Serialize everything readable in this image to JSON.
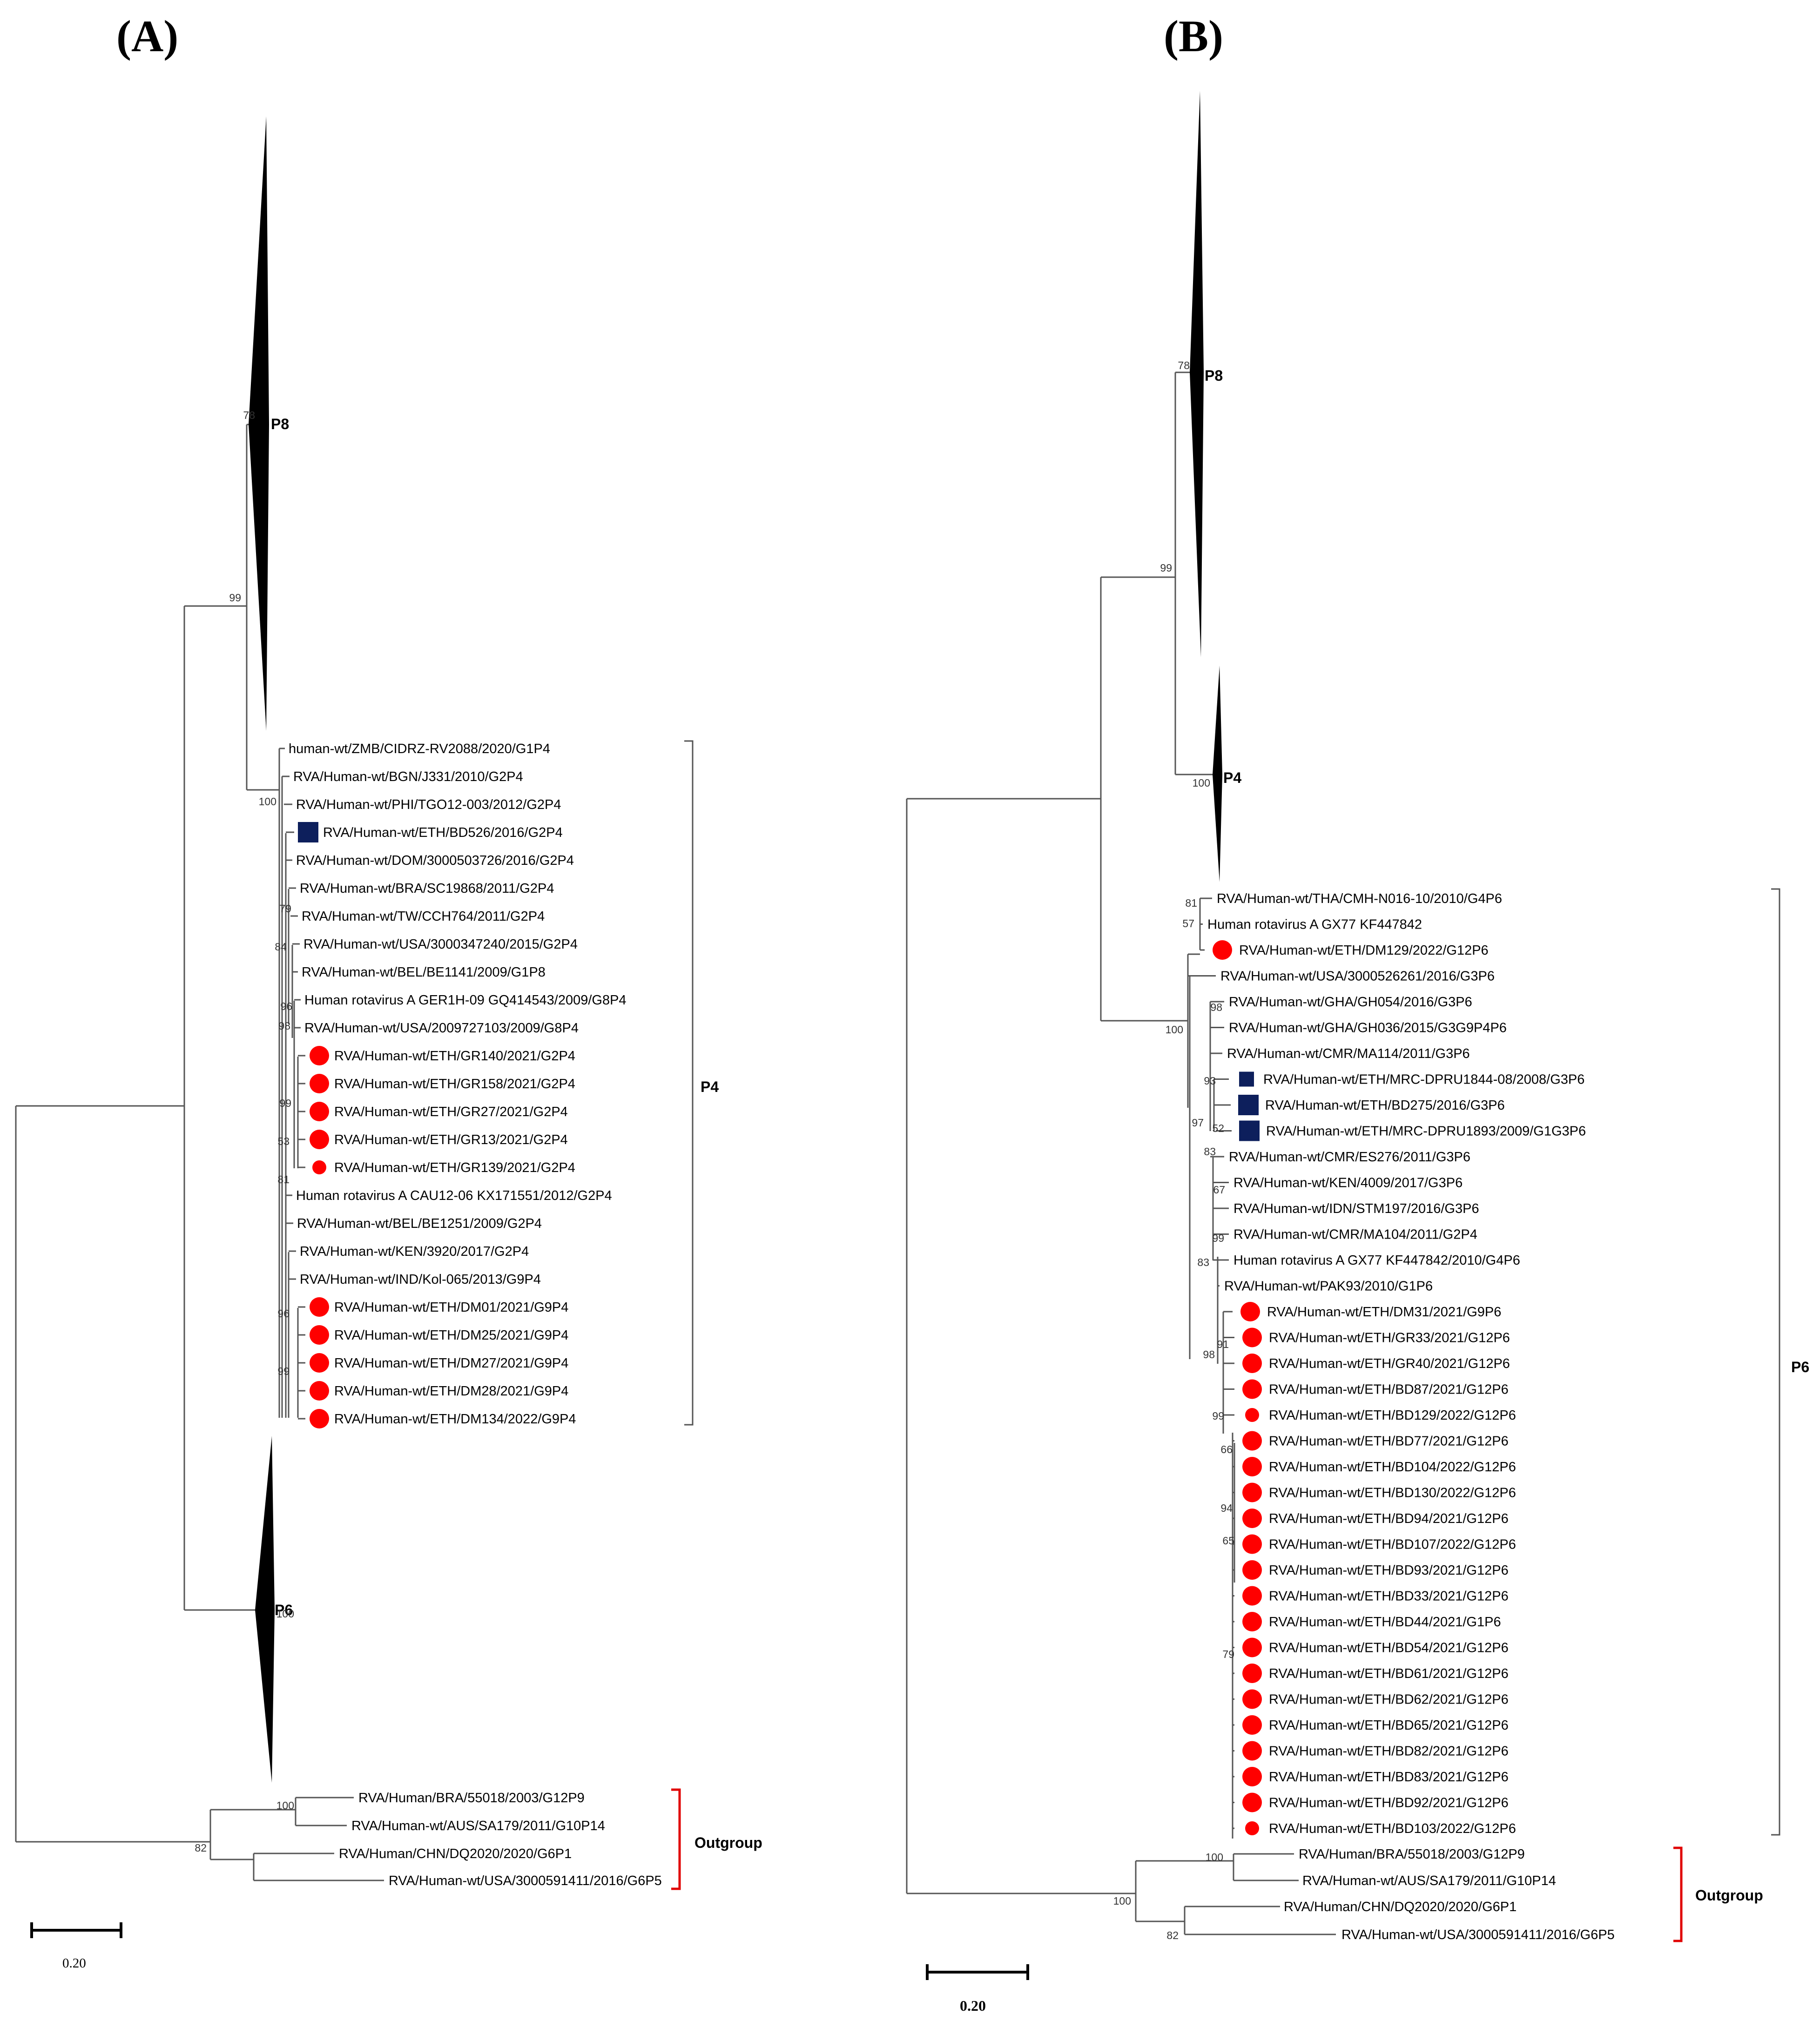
{
  "panelA": {
    "label": "(A)",
    "clades": {
      "p8": "P8",
      "p4": "P4",
      "p6": "P6",
      "outgroup": "Outgroup"
    },
    "scale": "0.20",
    "bootstrap": [
      "78",
      "99",
      "100",
      "79",
      "84",
      "96",
      "98",
      "99",
      "53",
      "81",
      "96",
      "99",
      "100",
      "100",
      "82"
    ],
    "p4_taxa": [
      {
        "label": "human-wt/ZMB/CIDRZ-RV2088/2020/G1P4",
        "marker": "none"
      },
      {
        "label": "RVA/Human-wt/BGN/J331/2010/G2P4",
        "marker": "none"
      },
      {
        "label": "RVA/Human-wt/PHI/TGO12-003/2012/G2P4",
        "marker": "none"
      },
      {
        "label": "RVA/Human-wt/ETH/BD526/2016/G2P4",
        "marker": "square"
      },
      {
        "label": "RVA/Human-wt/DOM/3000503726/2016/G2P4",
        "marker": "none"
      },
      {
        "label": "RVA/Human-wt/BRA/SC19868/2011/G2P4",
        "marker": "none"
      },
      {
        "label": "RVA/Human-wt/TW/CCH764/2011/G2P4",
        "marker": "none"
      },
      {
        "label": "RVA/Human-wt/USA/3000347240/2015/G2P4",
        "marker": "none"
      },
      {
        "label": "RVA/Human-wt/BEL/BE1141/2009/G1P8",
        "marker": "none"
      },
      {
        "label": "Human rotavirus A GER1H-09 GQ414543/2009/G8P4",
        "marker": "none"
      },
      {
        "label": "RVA/Human-wt/USA/2009727103/2009/G8P4",
        "marker": "none"
      },
      {
        "label": "RVA/Human-wt/ETH/GR140/2021/G2P4",
        "marker": "circle"
      },
      {
        "label": "RVA/Human-wt/ETH/GR158/2021/G2P4",
        "marker": "circle"
      },
      {
        "label": "RVA/Human-wt/ETH/GR27/2021/G2P4",
        "marker": "circle"
      },
      {
        "label": "RVA/Human-wt/ETH/GR13/2021/G2P4",
        "marker": "circle"
      },
      {
        "label": "RVA/Human-wt/ETH/GR139/2021/G2P4",
        "marker": "circle-small"
      },
      {
        "label": "Human rotavirus A CAU12-06 KX171551/2012/G2P4",
        "marker": "none"
      },
      {
        "label": "RVA/Human-wt/BEL/BE1251/2009/G2P4",
        "marker": "none"
      },
      {
        "label": "RVA/Human-wt/KEN/3920/2017/G2P4",
        "marker": "none"
      },
      {
        "label": "RVA/Human-wt/IND/Kol-065/2013/G9P4",
        "marker": "none"
      },
      {
        "label": "RVA/Human-wt/ETH/DM01/2021/G9P4",
        "marker": "circle"
      },
      {
        "label": "RVA/Human-wt/ETH/DM25/2021/G9P4",
        "marker": "circle"
      },
      {
        "label": "RVA/Human-wt/ETH/DM27/2021/G9P4",
        "marker": "circle"
      },
      {
        "label": "RVA/Human-wt/ETH/DM28/2021/G9P4",
        "marker": "circle"
      },
      {
        "label": "RVA/Human-wt/ETH/DM134/2022/G9P4",
        "marker": "circle"
      }
    ],
    "outgroup_taxa": [
      {
        "label": "RVA/Human/BRA/55018/2003/G12P9"
      },
      {
        "label": "RVA/Human-wt/AUS/SA179/2011/G10P14"
      },
      {
        "label": "RVA/Human/CHN/DQ2020/2020/G6P1"
      },
      {
        "label": "RVA/Human-wt/USA/3000591411/2016/G6P5"
      }
    ]
  },
  "panelB": {
    "label": "(B)",
    "clades": {
      "p8": "P8",
      "p4": "P4",
      "p6": "P6",
      "outgroup": "Outgroup"
    },
    "scale": "0.20",
    "bootstrap": [
      "78",
      "99",
      "100",
      "81",
      "57",
      "100",
      "98",
      "93",
      "97",
      "52",
      "83",
      "67",
      "99",
      "83",
      "91",
      "98",
      "99",
      "66",
      "94",
      "65",
      "79",
      "100",
      "100",
      "82"
    ],
    "p6_taxa": [
      {
        "label": "RVA/Human-wt/THA/CMH-N016-10/2010/G4P6",
        "marker": "none"
      },
      {
        "label": "Human rotavirus A GX77 KF447842",
        "marker": "none"
      },
      {
        "label": "RVA/Human-wt/ETH/DM129/2022/G12P6",
        "marker": "circle"
      },
      {
        "label": "RVA/Human-wt/USA/3000526261/2016/G3P6",
        "marker": "none"
      },
      {
        "label": "RVA/Human-wt/GHA/GH054/2016/G3P6",
        "marker": "none"
      },
      {
        "label": "RVA/Human-wt/GHA/GH036/2015/G3G9P4P6",
        "marker": "none"
      },
      {
        "label": "RVA/Human-wt/CMR/MA114/2011/G3P6",
        "marker": "none"
      },
      {
        "label": "RVA/Human-wt/ETH/MRC-DPRU1844-08/2008/G3P6",
        "marker": "square-small"
      },
      {
        "label": "RVA/Human-wt/ETH/BD275/2016/G3P6",
        "marker": "square"
      },
      {
        "label": "RVA/Human-wt/ETH/MRC-DPRU1893/2009/G1G3P6",
        "marker": "square"
      },
      {
        "label": "RVA/Human-wt/CMR/ES276/2011/G3P6",
        "marker": "none"
      },
      {
        "label": "RVA/Human-wt/KEN/4009/2017/G3P6",
        "marker": "none"
      },
      {
        "label": "RVA/Human-wt/IDN/STM197/2016/G3P6",
        "marker": "none"
      },
      {
        "label": "RVA/Human-wt/CMR/MA104/2011/G2P4",
        "marker": "none"
      },
      {
        "label": "Human rotavirus A GX77 KF447842/2010/G4P6",
        "marker": "none"
      },
      {
        "label": "RVA/Human-wt/PAK93/2010/G1P6",
        "marker": "none"
      },
      {
        "label": "RVA/Human-wt/ETH/DM31/2021/G9P6",
        "marker": "circle"
      },
      {
        "label": "RVA/Human-wt/ETH/GR33/2021/G12P6",
        "marker": "circle"
      },
      {
        "label": "RVA/Human-wt/ETH/GR40/2021/G12P6",
        "marker": "circle"
      },
      {
        "label": "RVA/Human-wt/ETH/BD87/2021/G12P6",
        "marker": "circle"
      },
      {
        "label": "RVA/Human-wt/ETH/BD129/2022/G12P6",
        "marker": "circle-small"
      },
      {
        "label": "RVA/Human-wt/ETH/BD77/2021/G12P6",
        "marker": "circle"
      },
      {
        "label": "RVA/Human-wt/ETH/BD104/2022/G12P6",
        "marker": "circle"
      },
      {
        "label": "RVA/Human-wt/ETH/BD130/2022/G12P6",
        "marker": "circle"
      },
      {
        "label": "RVA/Human-wt/ETH/BD94/2021/G12P6",
        "marker": "circle"
      },
      {
        "label": "RVA/Human-wt/ETH/BD107/2022/G12P6",
        "marker": "circle"
      },
      {
        "label": "RVA/Human-wt/ETH/BD93/2021/G12P6",
        "marker": "circle"
      },
      {
        "label": "RVA/Human-wt/ETH/BD33/2021/G12P6",
        "marker": "circle"
      },
      {
        "label": "RVA/Human-wt/ETH/BD44/2021/G1P6",
        "marker": "circle"
      },
      {
        "label": "RVA/Human-wt/ETH/BD54/2021/G12P6",
        "marker": "circle"
      },
      {
        "label": "RVA/Human-wt/ETH/BD61/2021/G12P6",
        "marker": "circle"
      },
      {
        "label": "RVA/Human-wt/ETH/BD62/2021/G12P6",
        "marker": "circle"
      },
      {
        "label": "RVA/Human-wt/ETH/BD65/2021/G12P6",
        "marker": "circle"
      },
      {
        "label": "RVA/Human-wt/ETH/BD82/2021/G12P6",
        "marker": "circle"
      },
      {
        "label": "RVA/Human-wt/ETH/BD83/2021/G12P6",
        "marker": "circle"
      },
      {
        "label": "RVA/Human-wt/ETH/BD92/2021/G12P6",
        "marker": "circle"
      },
      {
        "label": "RVA/Human-wt/ETH/BD103/2022/G12P6",
        "marker": "circle-small"
      }
    ],
    "outgroup_taxa": [
      {
        "label": "RVA/Human/BRA/55018/2003/G12P9"
      },
      {
        "label": "RVA/Human-wt/AUS/SA179/2011/G10P14"
      },
      {
        "label": "RVA/Human/CHN/DQ2020/2020/G6P1"
      },
      {
        "label": "RVA/Human-wt/USA/3000591411/2016/G6P5"
      }
    ]
  },
  "colors": {
    "ethiopian_recent": "#ff0000",
    "ethiopian_earlier": "#0d1f5c",
    "outgroup_bracket": "#e00000",
    "branch": "#555555"
  }
}
